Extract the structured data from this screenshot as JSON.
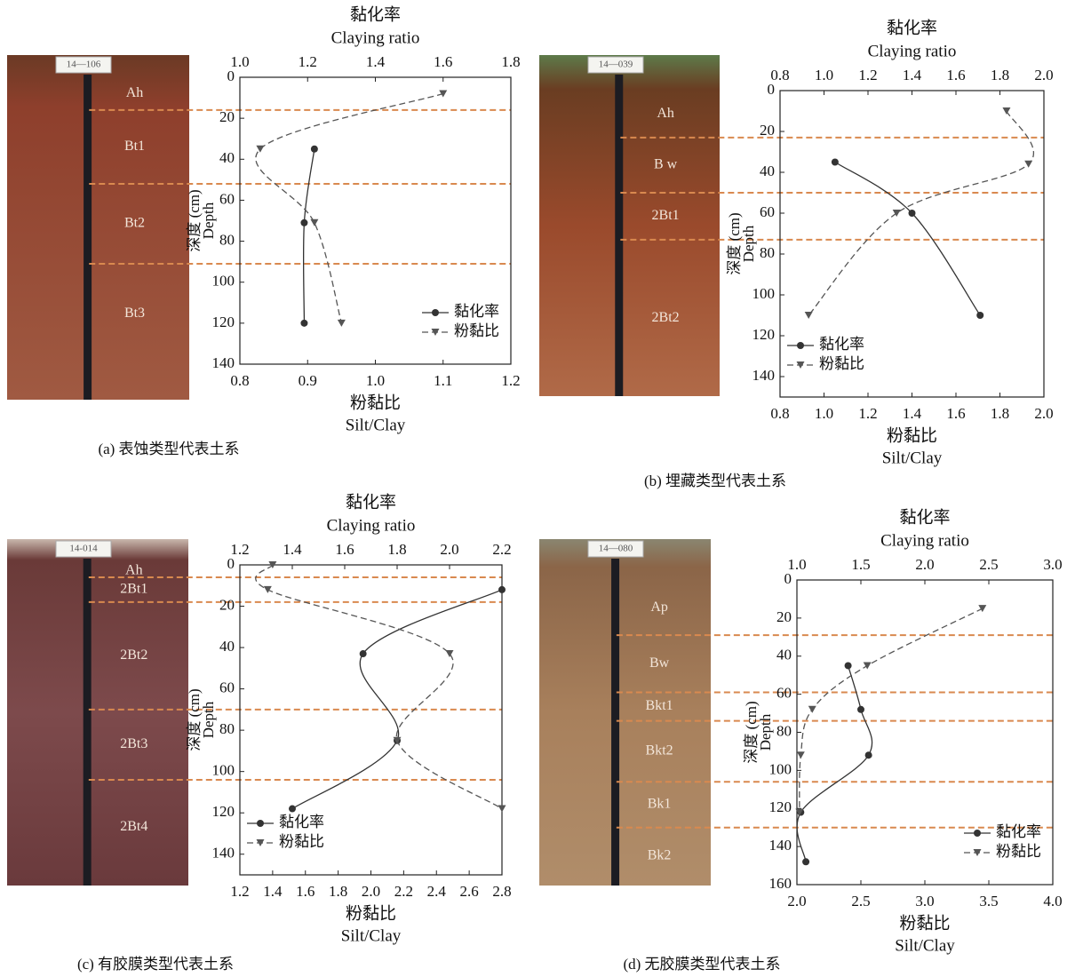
{
  "chart_data": [
    {
      "type": "line",
      "caption": "(a) 表蚀类型代表土系",
      "x2_title": "黏化率",
      "x2_subtitle": "Claying ratio",
      "x_title": "粉黏比",
      "x_subtitle": "Silt/Clay",
      "y_title": "深度 (cm)",
      "y_subtitle": "Depth",
      "profile_id": "14—106",
      "horizons": [
        "Ah",
        "Bt1",
        "Bt2",
        "Bt3"
      ],
      "boundaries": [
        16,
        52,
        91
      ],
      "boundary_color": "#d9894f",
      "x2lim": [
        1.0,
        1.8
      ],
      "x2ticks": [
        {
          "value": 1.0,
          "label": "1.0"
        },
        1.2,
        1.4,
        1.6,
        {
          "value": 1.8,
          "label": "1.8"
        }
      ],
      "xlim": [
        0.8,
        1.2
      ],
      "xticks": [
        0.8,
        0.9,
        {
          "value": 1.0,
          "label": "1.0"
        },
        1.1,
        1.2
      ],
      "ylim": [
        0,
        140
      ],
      "yticks": [
        0,
        20,
        40,
        60,
        80,
        100,
        120,
        140
      ],
      "y_inverted": true,
      "legend": "lower right",
      "series": [
        {
          "name": "黏化率",
          "axis": "x2",
          "color": "#333333",
          "marker": "circle",
          "dashed": false,
          "x": [
            1.22,
            1.19,
            1.19
          ],
          "y": [
            35,
            71,
            120
          ]
        },
        {
          "name": "粉黏比",
          "axis": "x",
          "color": "#555555",
          "marker": "triangle",
          "dashed": true,
          "x": [
            1.1,
            0.83,
            0.91,
            0.95
          ],
          "y": [
            8,
            35,
            71,
            120
          ]
        }
      ]
    },
    {
      "type": "line",
      "caption": "(b) 埋藏类型代表土系",
      "x2_title": "黏化率",
      "x2_subtitle": "Claying ratio",
      "x_title": "粉黏比",
      "x_subtitle": "Silt/Clay",
      "y_title": "深度 (cm)",
      "y_subtitle": "Depth",
      "profile_id": "14—039",
      "horizons": [
        "Ah",
        "B w",
        "2Bt1",
        "2Bt2"
      ],
      "boundaries": [
        23,
        50,
        73
      ],
      "boundary_color": "#d9894f",
      "x2lim": [
        0.8,
        2.0
      ],
      "x2ticks": [
        0.8,
        {
          "value": 1.0,
          "label": "1.0"
        },
        1.2,
        1.4,
        1.6,
        1.8,
        {
          "value": 2.0,
          "label": "2.0"
        }
      ],
      "xlim": [
        0.8,
        2.0
      ],
      "xticks": [
        0.8,
        {
          "value": 1.0,
          "label": "1.0"
        },
        1.2,
        1.4,
        1.6,
        1.8,
        {
          "value": 2.0,
          "label": "2.0"
        }
      ],
      "ylim": [
        0,
        150
      ],
      "yticks": [
        0,
        20,
        40,
        60,
        80,
        100,
        120,
        140
      ],
      "y_inverted": true,
      "legend": "lower left",
      "series": [
        {
          "name": "黏化率",
          "axis": "x2",
          "color": "#333333",
          "marker": "circle",
          "dashed": false,
          "x": [
            1.05,
            1.4,
            1.71
          ],
          "y": [
            35,
            60,
            110
          ]
        },
        {
          "name": "粉黏比",
          "axis": "x",
          "color": "#555555",
          "marker": "triangle",
          "dashed": true,
          "x": [
            1.83,
            1.93,
            1.33,
            0.93
          ],
          "y": [
            10,
            36,
            60,
            110
          ]
        }
      ]
    },
    {
      "type": "line",
      "caption": "(c) 有胶膜类型代表土系",
      "x2_title": "黏化率",
      "x2_subtitle": "Claying ratio",
      "x_title": "粉黏比",
      "x_subtitle": "Silt/Clay",
      "y_title": "深度 (cm)",
      "y_subtitle": "Depth",
      "profile_id": "14-014",
      "horizons": [
        "Ah",
        "2Bt1",
        "2Bt2",
        "2Bt3",
        "2Bt4"
      ],
      "boundaries": [
        6,
        18,
        70,
        104
      ],
      "boundary_color": "#d9894f",
      "x2lim": [
        1.2,
        2.2
      ],
      "x2ticks": [
        1.2,
        1.4,
        1.6,
        1.8,
        {
          "value": 2.0,
          "label": "2.0"
        },
        2.2
      ],
      "xlim": [
        1.2,
        2.8
      ],
      "xticks": [
        1.2,
        1.4,
        1.6,
        1.8,
        {
          "value": 2.0,
          "label": "2.0"
        },
        2.2,
        2.4,
        2.6,
        2.8
      ],
      "ylim": [
        0,
        150
      ],
      "yticks": [
        0,
        20,
        40,
        60,
        80,
        100,
        120,
        140
      ],
      "y_inverted": true,
      "legend": "lower left",
      "series": [
        {
          "name": "黏化率",
          "axis": "x2",
          "color": "#333333",
          "marker": "circle",
          "dashed": false,
          "x": [
            2.2,
            1.67,
            1.8,
            1.4
          ],
          "y": [
            12,
            43,
            85,
            118
          ]
        },
        {
          "name": "粉黏比",
          "axis": "x",
          "color": "#555555",
          "marker": "triangle",
          "dashed": true,
          "x": [
            1.4,
            1.37,
            2.48,
            2.16,
            2.8
          ],
          "y": [
            0,
            12,
            43,
            85,
            118
          ]
        }
      ]
    },
    {
      "type": "line",
      "caption": "(d) 无胶膜类型代表土系",
      "x2_title": "黏化率",
      "x2_subtitle": "Claying ratio",
      "x_title": "粉黏比",
      "x_subtitle": "Silt/Clay",
      "y_title": "深度 (cm)",
      "y_subtitle": "Depth",
      "profile_id": "14—080",
      "horizons": [
        "Ap",
        "Bw",
        "Bkt1",
        "Bkt2",
        "Bk1",
        "Bk2"
      ],
      "boundaries": [
        29,
        59,
        74,
        106,
        130
      ],
      "boundary_color": "#d9894f",
      "x2lim": [
        1.0,
        3.0
      ],
      "x2ticks": [
        {
          "value": 1.0,
          "label": "1.0"
        },
        1.5,
        {
          "value": 2.0,
          "label": "2.0"
        },
        2.5,
        {
          "value": 3.0,
          "label": "3.0"
        }
      ],
      "xlim": [
        2.0,
        4.0
      ],
      "xticks": [
        {
          "value": 2.0,
          "label": "2.0"
        },
        2.5,
        {
          "value": 3.0,
          "label": "3.0"
        },
        3.5,
        {
          "value": 4.0,
          "label": "4.0"
        }
      ],
      "ylim": [
        0,
        160
      ],
      "yticks": [
        0,
        20,
        40,
        60,
        80,
        100,
        120,
        140,
        160
      ],
      "y_inverted": true,
      "legend": "lower right",
      "series": [
        {
          "name": "黏化率",
          "axis": "x2",
          "color": "#333333",
          "marker": "circle",
          "dashed": false,
          "x": [
            1.4,
            1.5,
            1.56,
            1.03,
            1.07
          ],
          "y": [
            45,
            68,
            92,
            122,
            148
          ]
        },
        {
          "name": "粉黏比",
          "axis": "x",
          "color": "#555555",
          "marker": "triangle",
          "dashed": true,
          "x": [
            3.45,
            2.55,
            2.12,
            2.03,
            2.02
          ],
          "y": [
            15,
            45,
            68,
            92,
            122
          ]
        }
      ]
    }
  ]
}
